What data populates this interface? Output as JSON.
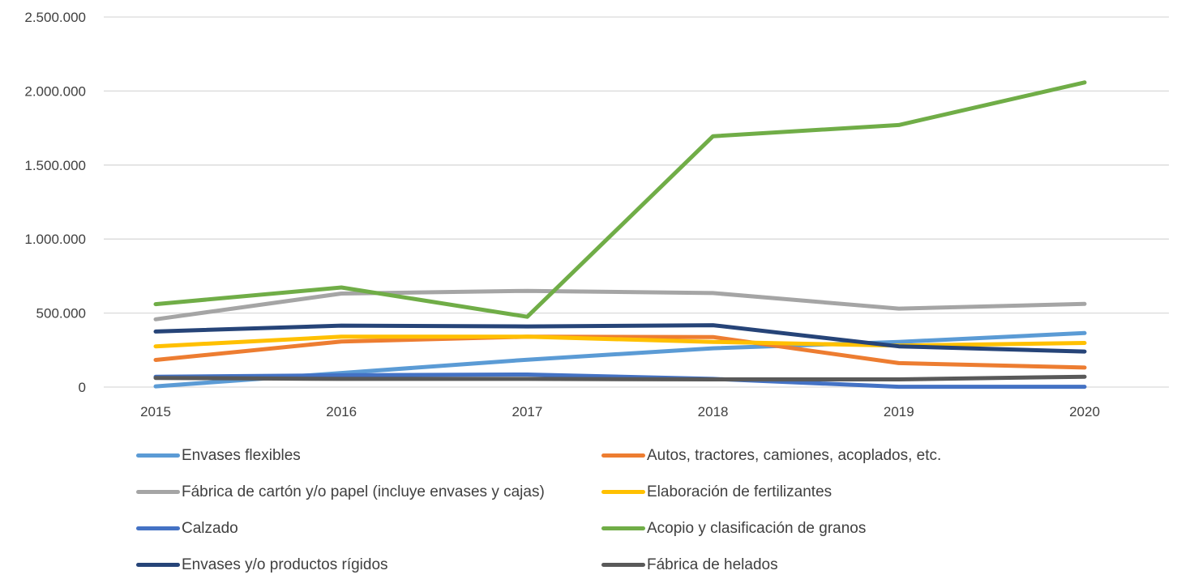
{
  "chart_data": {
    "type": "line",
    "title": "",
    "xlabel": "",
    "ylabel": "",
    "x": [
      "2015",
      "2016",
      "2017",
      "2018",
      "2019",
      "2020"
    ],
    "ylim": [
      0,
      2500000
    ],
    "y_ticks": [
      {
        "value": 0,
        "label": "0"
      },
      {
        "value": 500000,
        "label": "500.000"
      },
      {
        "value": 1000000,
        "label": "1.000.000"
      },
      {
        "value": 1500000,
        "label": "1.500.000"
      },
      {
        "value": 2000000,
        "label": "2.000.000"
      },
      {
        "value": 2500000,
        "label": "2.500.000"
      }
    ],
    "grid": "horizontal",
    "legend_position": "bottom",
    "series": [
      {
        "name": "Envases flexibles",
        "color": "#5B9BD5",
        "values": [
          5000,
          95000,
          185000,
          262000,
          305000,
          365000
        ]
      },
      {
        "name": "Autos, tractores, camiones, acoplados, etc.",
        "color": "#ED7D31",
        "values": [
          183000,
          308000,
          340000,
          338000,
          162000,
          132000
        ]
      },
      {
        "name": "Fábrica de cartón y/o papel (incluye envases y cajas)",
        "color": "#A5A5A5",
        "values": [
          458000,
          632000,
          650000,
          635000,
          530000,
          562000
        ]
      },
      {
        "name": "Elaboración de fertilizantes",
        "color": "#FFC000",
        "values": [
          275000,
          340000,
          340000,
          305000,
          280000,
          298000
        ]
      },
      {
        "name": "Calzado",
        "color": "#4472C4",
        "values": [
          70000,
          80000,
          85000,
          55000,
          2000,
          2000
        ]
      },
      {
        "name": "Acopio y clasificación de granos",
        "color": "#70AD47",
        "values": [
          560000,
          673000,
          475000,
          1695000,
          1770000,
          2058000
        ]
      },
      {
        "name": "Envases y/o productos rígidos",
        "color": "#264478",
        "values": [
          375000,
          415000,
          410000,
          418000,
          275000,
          240000
        ]
      },
      {
        "name": "Fábrica de helados",
        "color": "#595959",
        "values": [
          62000,
          55000,
          55000,
          52000,
          52000,
          70000
        ]
      }
    ]
  }
}
